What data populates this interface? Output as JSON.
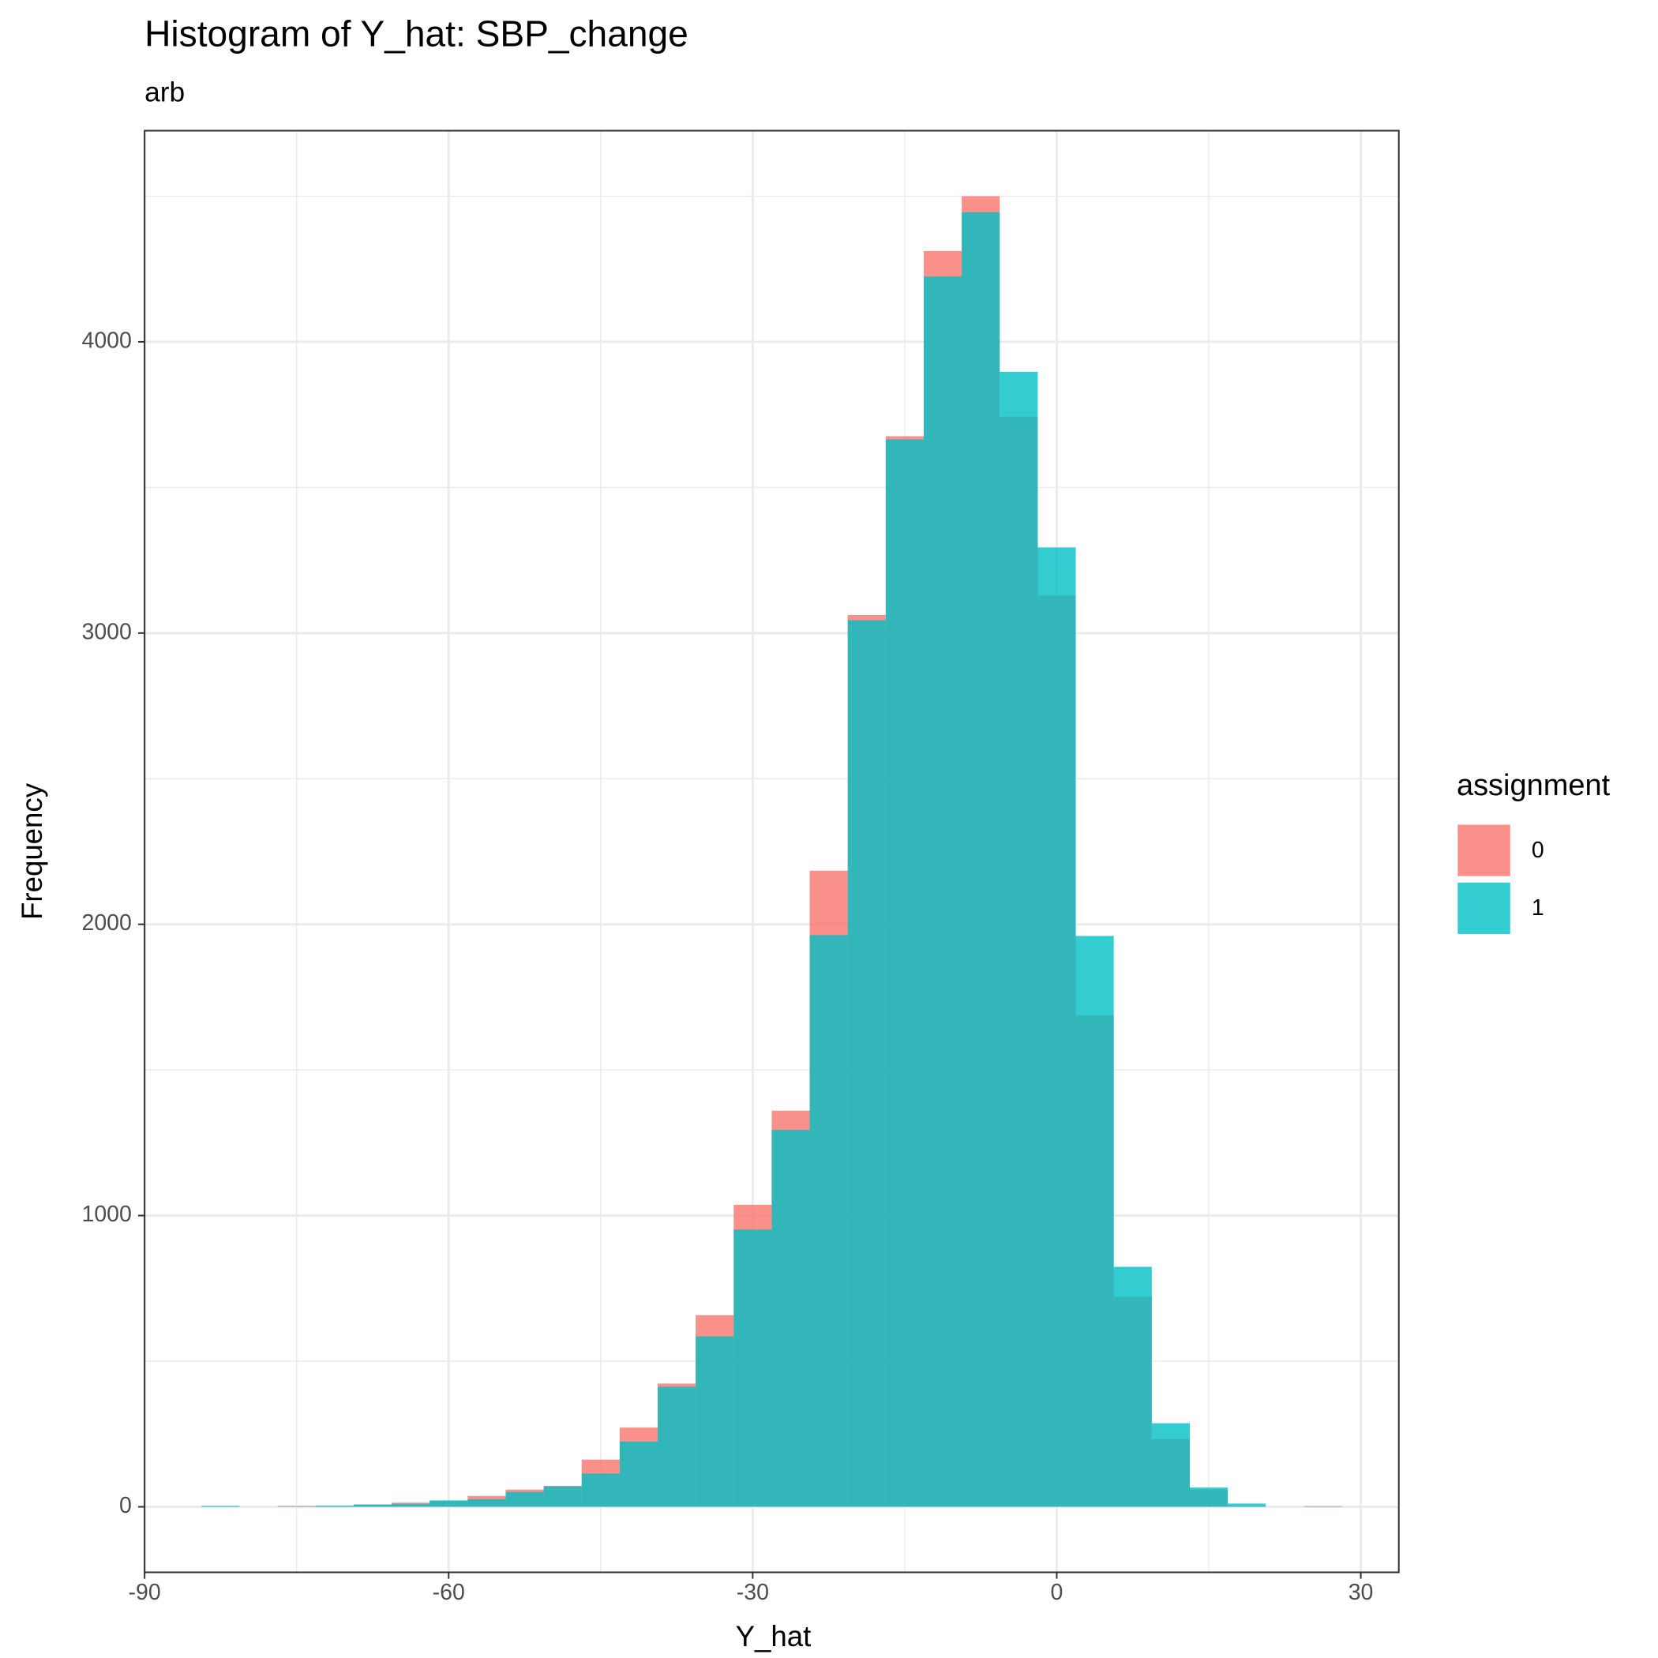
{
  "chart_data": {
    "type": "histogram",
    "title": "Histogram of Y_hat: SBP_change",
    "subtitle": "arb",
    "x_label": "Y_hat",
    "y_label": "Frequency",
    "legend_title": "assignment",
    "legend": "right",
    "alpha": 0.8,
    "grid": true,
    "bins": [
      -84.375,
      -80.625,
      -76.875,
      -73.125,
      -69.375,
      -65.625,
      -61.875,
      -58.125,
      -54.375,
      -50.625,
      -46.875,
      -43.125,
      -39.375,
      -35.625,
      -31.875,
      -28.125,
      -24.375,
      -20.625,
      -16.875,
      -13.125,
      -9.375,
      -5.625,
      -1.875,
      1.875,
      5.625,
      9.375,
      13.125,
      16.875,
      20.625,
      24.375,
      28.125
    ],
    "series": [
      {
        "name": "0",
        "color": "#F8766D",
        "values": [
          2,
          0,
          3,
          3,
          7,
          14,
          20,
          37,
          59,
          72,
          162,
          272,
          423,
          658,
          1037,
          1360,
          2184,
          3062,
          3676,
          4312,
          4500,
          3743,
          3129,
          1688,
          721,
          232,
          59,
          2,
          0,
          2
        ]
      },
      {
        "name": "1",
        "color": "#00BFC4",
        "values": [
          3,
          0,
          1,
          4,
          8,
          10,
          22,
          26,
          51,
          70,
          114,
          224,
          412,
          585,
          952,
          1294,
          1963,
          3044,
          3665,
          4224,
          4445,
          3897,
          3294,
          1960,
          824,
          287,
          66,
          11,
          0,
          1
        ]
      }
    ],
    "xlim": [
      -90,
      33.75
    ],
    "ylim": [
      -225,
      4725
    ],
    "xticks": [
      -90,
      -60,
      -30,
      0,
      30
    ],
    "yticks": [
      0,
      1000,
      2000,
      3000,
      4000
    ]
  }
}
